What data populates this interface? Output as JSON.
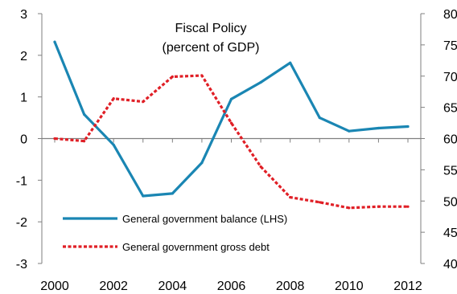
{
  "chart_data": {
    "type": "line",
    "title": "Fiscal Policy",
    "subtitle": "(percent of GDP)",
    "x": [
      2000,
      2001,
      2002,
      2003,
      2004,
      2005,
      2006,
      2007,
      2008,
      2009,
      2010,
      2011,
      2012
    ],
    "x_tick_labels": [
      "2000",
      "2002",
      "2004",
      "2006",
      "2008",
      "2010",
      "2012"
    ],
    "x_tick_values": [
      2000,
      2002,
      2004,
      2006,
      2008,
      2010,
      2012
    ],
    "y_left": {
      "lim": [
        -3,
        3
      ],
      "ticks": [
        -3,
        -2,
        -1,
        0,
        1,
        2,
        3
      ],
      "tick_labels": [
        "-3",
        "-2",
        "-1",
        "0",
        "1",
        "2",
        "3"
      ]
    },
    "y_right": {
      "lim": [
        40,
        80
      ],
      "ticks": [
        40,
        45,
        50,
        55,
        60,
        65,
        70,
        75,
        80
      ],
      "tick_labels": [
        "40",
        "45",
        "50",
        "55",
        "60",
        "65",
        "70",
        "75",
        "80"
      ]
    },
    "grid": false,
    "legend_placement": "bottom-left",
    "series": [
      {
        "name": "General government  balance (LHS)",
        "axis": "left",
        "color": "#1a86b3",
        "style": "solid",
        "values": [
          2.32,
          0.58,
          -0.15,
          -1.38,
          -1.32,
          -0.58,
          0.95,
          1.35,
          1.82,
          0.5,
          0.18,
          0.25,
          0.29
        ]
      },
      {
        "name": "General government  gross debt",
        "axis": "right",
        "color": "#e01f26",
        "style": "dashed",
        "values": [
          60.0,
          59.6,
          66.4,
          65.9,
          69.9,
          70.1,
          62.5,
          55.5,
          50.6,
          49.8,
          48.9,
          49.1,
          49.1
        ]
      }
    ]
  }
}
